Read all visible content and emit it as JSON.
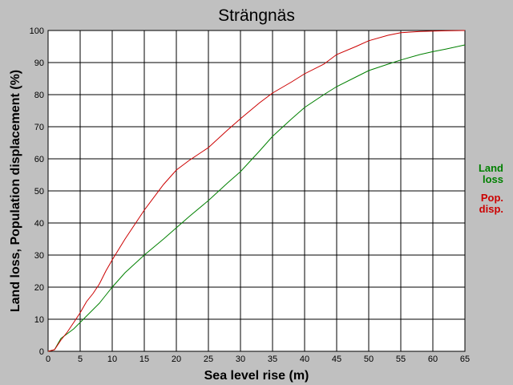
{
  "chart_data": {
    "type": "line",
    "title": "Strängnäs",
    "xlabel": "Sea level rise (m)",
    "ylabel": "Land loss, Population displacement (%)",
    "xlim": [
      0,
      65
    ],
    "ylim": [
      0,
      100
    ],
    "xticks": [
      0,
      5,
      10,
      15,
      20,
      25,
      30,
      35,
      40,
      45,
      50,
      55,
      60,
      65
    ],
    "yticks": [
      0,
      10,
      20,
      30,
      40,
      50,
      60,
      70,
      80,
      90,
      100
    ],
    "grid": true,
    "legend_position": "right",
    "series": [
      {
        "name": "Land loss",
        "legend_lines": [
          "Land",
          "loss"
        ],
        "color": "#008000",
        "x": [
          0,
          1,
          2,
          3,
          4,
          5,
          6,
          7,
          8,
          9,
          10,
          12,
          15,
          18,
          20,
          22,
          25,
          28,
          30,
          33,
          35,
          38,
          40,
          43,
          45,
          48,
          50,
          53,
          55,
          58,
          60,
          62,
          65
        ],
        "y": [
          0,
          0.5,
          4,
          5.5,
          7,
          9,
          11,
          13,
          15,
          17.5,
          20,
          24.5,
          30,
          35,
          38.5,
          42,
          47,
          52.5,
          56,
          62.5,
          67,
          72.5,
          76,
          80,
          82.5,
          85.5,
          87.5,
          89.5,
          90.8,
          92.5,
          93.4,
          94.2,
          95.5
        ]
      },
      {
        "name": "Pop. disp.",
        "legend_lines": [
          "Pop.",
          "disp."
        ],
        "color": "#cc0000",
        "x": [
          0,
          1,
          2,
          3,
          4,
          5,
          6,
          7,
          8,
          9,
          10,
          12,
          15,
          18,
          20,
          22,
          25,
          28,
          30,
          33,
          35,
          38,
          40,
          43,
          45,
          48,
          50,
          53,
          55,
          58,
          60,
          62,
          65
        ],
        "y": [
          0,
          0.5,
          3.5,
          6,
          9,
          12,
          15.5,
          18,
          21,
          25,
          28.5,
          35,
          44,
          52,
          56.5,
          59.5,
          63.5,
          69,
          72.5,
          77.5,
          80.5,
          84,
          86.5,
          89.5,
          92.5,
          95,
          96.8,
          98.5,
          99.3,
          99.7,
          99.8,
          99.9,
          100
        ]
      }
    ]
  }
}
